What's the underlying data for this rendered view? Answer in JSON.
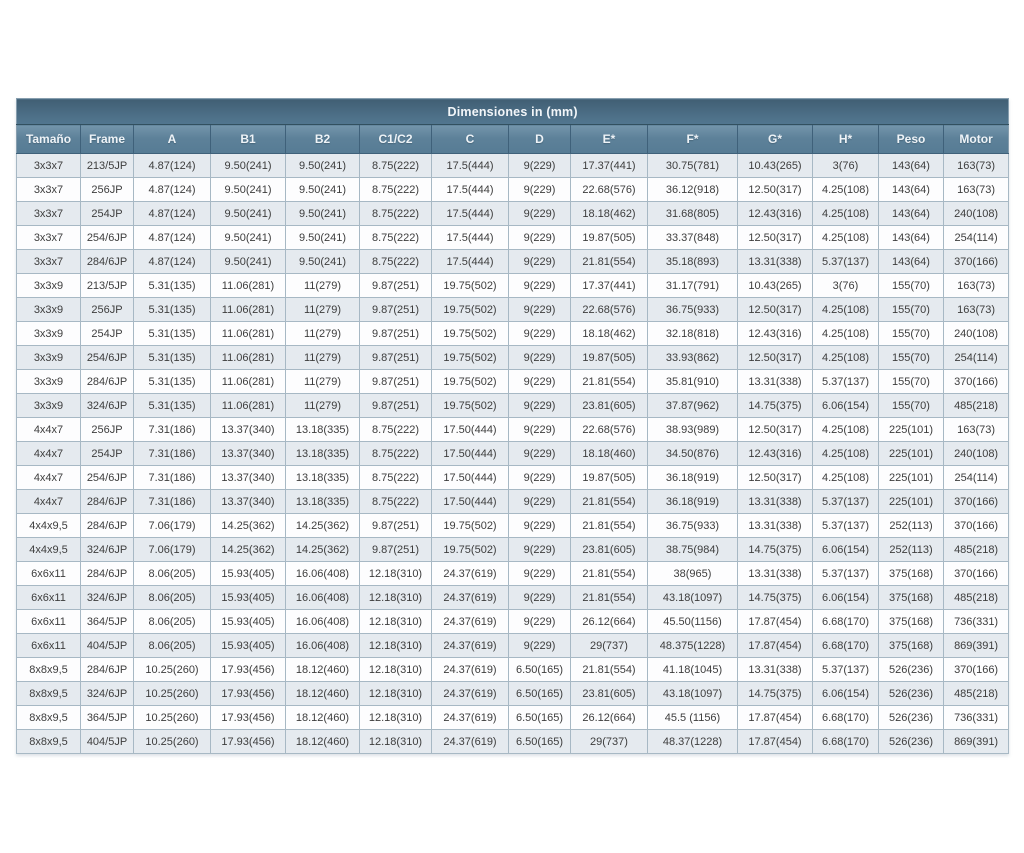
{
  "title": "Dimensiones in (mm)",
  "colors": {
    "header_band": "#48697f",
    "header_cell": "#5d8199",
    "header_text": "#eef3f7",
    "row_stripe": "#e5eaef",
    "row_plain": "#fdfdfe",
    "cell_border": "#a7b8c4",
    "cell_text": "#3d3d3d"
  },
  "table": {
    "columns": [
      "Tamaño",
      "Frame",
      "A",
      "B1",
      "B2",
      "C1/C2",
      "C",
      "D",
      "E*",
      "F*",
      "G*",
      "H*",
      "Peso",
      "Motor"
    ],
    "rows": [
      [
        "3x3x7",
        "213/5JP",
        "4.87(124)",
        "9.50(241)",
        "9.50(241)",
        "8.75(222)",
        "17.5(444)",
        "9(229)",
        "17.37(441)",
        "30.75(781)",
        "10.43(265)",
        "3(76)",
        "143(64)",
        "163(73)"
      ],
      [
        "3x3x7",
        "256JP",
        "4.87(124)",
        "9.50(241)",
        "9.50(241)",
        "8.75(222)",
        "17.5(444)",
        "9(229)",
        "22.68(576)",
        "36.12(918)",
        "12.50(317)",
        "4.25(108)",
        "143(64)",
        "163(73)"
      ],
      [
        "3x3x7",
        "254JP",
        "4.87(124)",
        "9.50(241)",
        "9.50(241)",
        "8.75(222)",
        "17.5(444)",
        "9(229)",
        "18.18(462)",
        "31.68(805)",
        "12.43(316)",
        "4.25(108)",
        "143(64)",
        "240(108)"
      ],
      [
        "3x3x7",
        "254/6JP",
        "4.87(124)",
        "9.50(241)",
        "9.50(241)",
        "8.75(222)",
        "17.5(444)",
        "9(229)",
        "19.87(505)",
        "33.37(848)",
        "12.50(317)",
        "4.25(108)",
        "143(64)",
        "254(114)"
      ],
      [
        "3x3x7",
        "284/6JP",
        "4.87(124)",
        "9.50(241)",
        "9.50(241)",
        "8.75(222)",
        "17.5(444)",
        "9(229)",
        "21.81(554)",
        "35.18(893)",
        "13.31(338)",
        "5.37(137)",
        "143(64)",
        "370(166)"
      ],
      [
        "3x3x9",
        "213/5JP",
        "5.31(135)",
        "11.06(281)",
        "11(279)",
        "9.87(251)",
        "19.75(502)",
        "9(229)",
        "17.37(441)",
        "31.17(791)",
        "10.43(265)",
        "3(76)",
        "155(70)",
        "163(73)"
      ],
      [
        "3x3x9",
        "256JP",
        "5.31(135)",
        "11.06(281)",
        "11(279)",
        "9.87(251)",
        "19.75(502)",
        "9(229)",
        "22.68(576)",
        "36.75(933)",
        "12.50(317)",
        "4.25(108)",
        "155(70)",
        "163(73)"
      ],
      [
        "3x3x9",
        "254JP",
        "5.31(135)",
        "11.06(281)",
        "11(279)",
        "9.87(251)",
        "19.75(502)",
        "9(229)",
        "18.18(462)",
        "32.18(818)",
        "12.43(316)",
        "4.25(108)",
        "155(70)",
        "240(108)"
      ],
      [
        "3x3x9",
        "254/6JP",
        "5.31(135)",
        "11.06(281)",
        "11(279)",
        "9.87(251)",
        "19.75(502)",
        "9(229)",
        "19.87(505)",
        "33.93(862)",
        "12.50(317)",
        "4.25(108)",
        "155(70)",
        "254(114)"
      ],
      [
        "3x3x9",
        "284/6JP",
        "5.31(135)",
        "11.06(281)",
        "11(279)",
        "9.87(251)",
        "19.75(502)",
        "9(229)",
        "21.81(554)",
        "35.81(910)",
        "13.31(338)",
        "5.37(137)",
        "155(70)",
        "370(166)"
      ],
      [
        "3x3x9",
        "324/6JP",
        "5.31(135)",
        "11.06(281)",
        "11(279)",
        "9.87(251)",
        "19.75(502)",
        "9(229)",
        "23.81(605)",
        "37.87(962)",
        "14.75(375)",
        "6.06(154)",
        "155(70)",
        "485(218)"
      ],
      [
        "4x4x7",
        "256JP",
        "7.31(186)",
        "13.37(340)",
        "13.18(335)",
        "8.75(222)",
        "17.50(444)",
        "9(229)",
        "22.68(576)",
        "38.93(989)",
        "12.50(317)",
        "4.25(108)",
        "225(101)",
        "163(73)"
      ],
      [
        "4x4x7",
        "254JP",
        "7.31(186)",
        "13.37(340)",
        "13.18(335)",
        "8.75(222)",
        "17.50(444)",
        "9(229)",
        "18.18(460)",
        "34.50(876)",
        "12.43(316)",
        "4.25(108)",
        "225(101)",
        "240(108)"
      ],
      [
        "4x4x7",
        "254/6JP",
        "7.31(186)",
        "13.37(340)",
        "13.18(335)",
        "8.75(222)",
        "17.50(444)",
        "9(229)",
        "19.87(505)",
        "36.18(919)",
        "12.50(317)",
        "4.25(108)",
        "225(101)",
        "254(114)"
      ],
      [
        "4x4x7",
        "284/6JP",
        "7.31(186)",
        "13.37(340)",
        "13.18(335)",
        "8.75(222)",
        "17.50(444)",
        "9(229)",
        "21.81(554)",
        "36.18(919)",
        "13.31(338)",
        "5.37(137)",
        "225(101)",
        "370(166)"
      ],
      [
        "4x4x9,5",
        "284/6JP",
        "7.06(179)",
        "14.25(362)",
        "14.25(362)",
        "9.87(251)",
        "19.75(502)",
        "9(229)",
        "21.81(554)",
        "36.75(933)",
        "13.31(338)",
        "5.37(137)",
        "252(113)",
        "370(166)"
      ],
      [
        "4x4x9,5",
        "324/6JP",
        "7.06(179)",
        "14.25(362)",
        "14.25(362)",
        "9.87(251)",
        "19.75(502)",
        "9(229)",
        "23.81(605)",
        "38.75(984)",
        "14.75(375)",
        "6.06(154)",
        "252(113)",
        "485(218)"
      ],
      [
        "6x6x11",
        "284/6JP",
        "8.06(205)",
        "15.93(405)",
        "16.06(408)",
        "12.18(310)",
        "24.37(619)",
        "9(229)",
        "21.81(554)",
        "38(965)",
        "13.31(338)",
        "5.37(137)",
        "375(168)",
        "370(166)"
      ],
      [
        "6x6x11",
        "324/6JP",
        "8.06(205)",
        "15.93(405)",
        "16.06(408)",
        "12.18(310)",
        "24.37(619)",
        "9(229)",
        "21.81(554)",
        "43.18(1097)",
        "14.75(375)",
        "6.06(154)",
        "375(168)",
        "485(218)"
      ],
      [
        "6x6x11",
        "364/5JP",
        "8.06(205)",
        "15.93(405)",
        "16.06(408)",
        "12.18(310)",
        "24.37(619)",
        "9(229)",
        "26.12(664)",
        "45.50(1156)",
        "17.87(454)",
        "6.68(170)",
        "375(168)",
        "736(331)"
      ],
      [
        "6x6x11",
        "404/5JP",
        "8.06(205)",
        "15.93(405)",
        "16.06(408)",
        "12.18(310)",
        "24.37(619)",
        "9(229)",
        "29(737)",
        "48.375(1228)",
        "17.87(454)",
        "6.68(170)",
        "375(168)",
        "869(391)"
      ],
      [
        "8x8x9,5",
        "284/6JP",
        "10.25(260)",
        "17.93(456)",
        "18.12(460)",
        "12.18(310)",
        "24.37(619)",
        "6.50(165)",
        "21.81(554)",
        "41.18(1045)",
        "13.31(338)",
        "5.37(137)",
        "526(236)",
        "370(166)"
      ],
      [
        "8x8x9,5",
        "324/6JP",
        "10.25(260)",
        "17.93(456)",
        "18.12(460)",
        "12.18(310)",
        "24.37(619)",
        "6.50(165)",
        "23.81(605)",
        "43.18(1097)",
        "14.75(375)",
        "6.06(154)",
        "526(236)",
        "485(218)"
      ],
      [
        "8x8x9,5",
        "364/5JP",
        "10.25(260)",
        "17.93(456)",
        "18.12(460)",
        "12.18(310)",
        "24.37(619)",
        "6.50(165)",
        "26.12(664)",
        "45.5 (1156)",
        "17.87(454)",
        "6.68(170)",
        "526(236)",
        "736(331)"
      ],
      [
        "8x8x9,5",
        "404/5JP",
        "10.25(260)",
        "17.93(456)",
        "18.12(460)",
        "12.18(310)",
        "24.37(619)",
        "6.50(165)",
        "29(737)",
        "48.37(1228)",
        "17.87(454)",
        "6.68(170)",
        "526(236)",
        "869(391)"
      ]
    ]
  }
}
